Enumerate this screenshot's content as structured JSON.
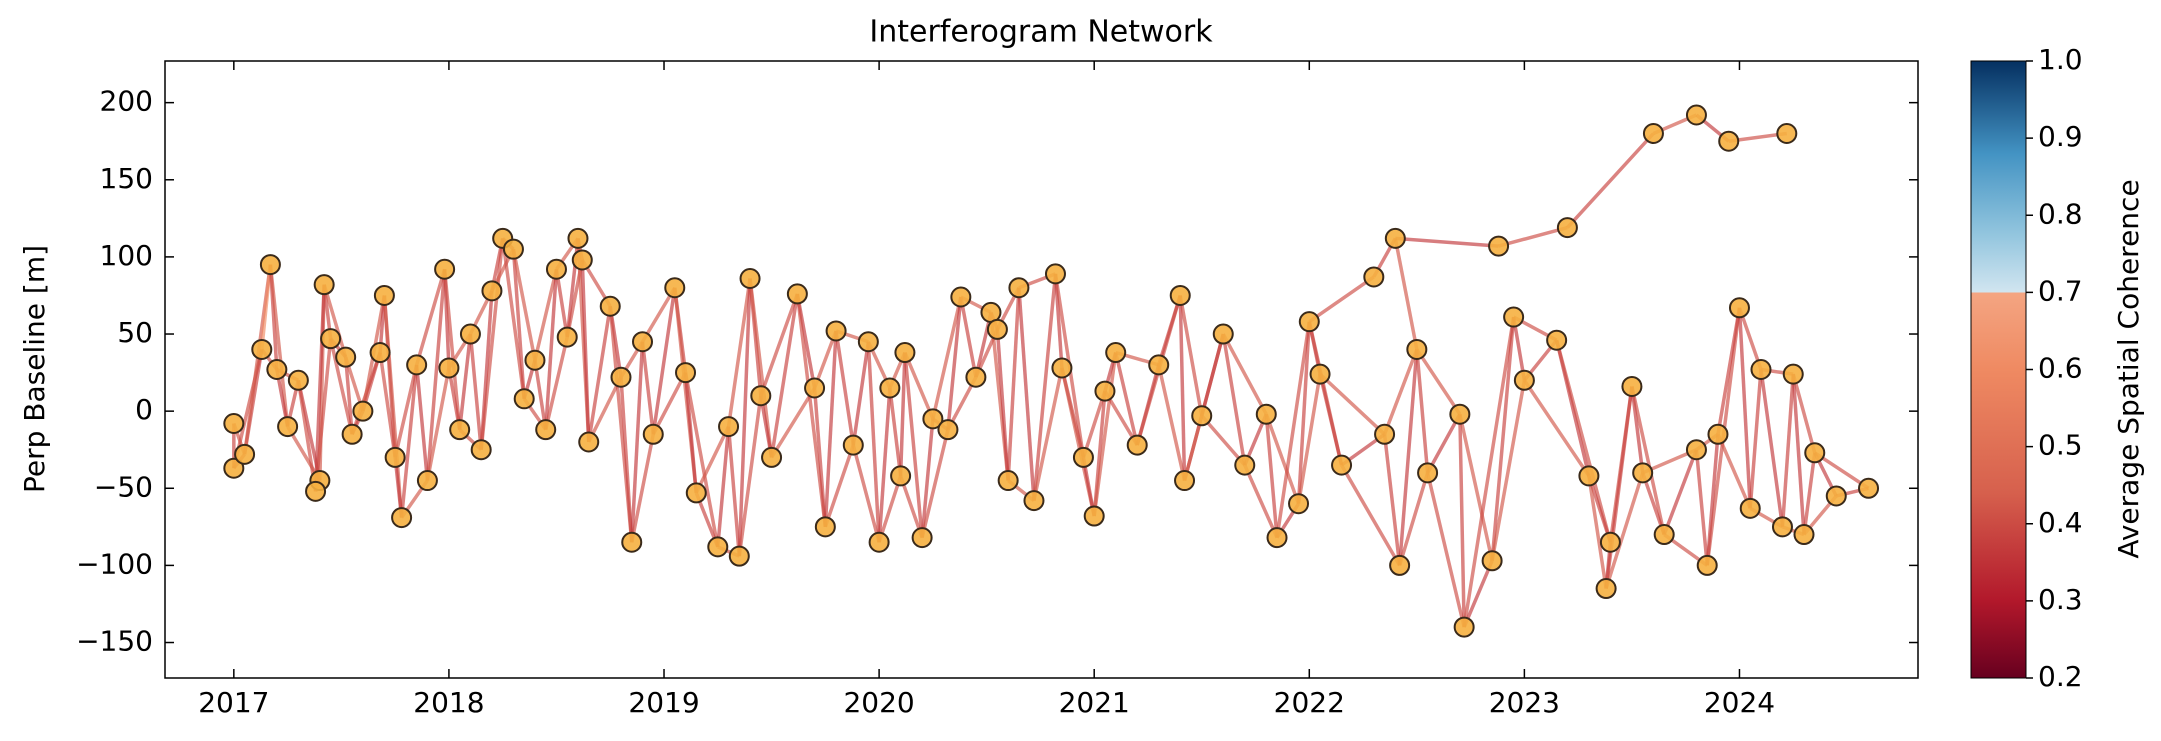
{
  "chart_data": {
    "type": "network",
    "title": "Interferogram Network",
    "y_label": "Perp Baseline [m]",
    "colorbar_label": "Average Spatial Coherence",
    "node_color": "#f6b040",
    "node_edge_color": "#3a2a1a",
    "xlim": [
      2016.68,
      2024.83
    ],
    "xticks": [
      2017,
      2018,
      2019,
      2020,
      2021,
      2022,
      2023,
      2024
    ],
    "ylim": [
      -173,
      227
    ],
    "yticks": [
      {
        "value": -150,
        "label": "−150"
      },
      {
        "value": -100,
        "label": "−100"
      },
      {
        "value": -50,
        "label": "−50"
      },
      0,
      50,
      100,
      150,
      200
    ],
    "clim": [
      0.2,
      1.0
    ],
    "cticks": [
      0.2,
      0.3,
      0.4,
      0.5,
      0.6,
      0.7,
      0.8,
      0.9,
      {
        "value": 1.0,
        "label": "1.0"
      }
    ],
    "x": [
      2017.0,
      2017.0,
      2017.05,
      2017.13,
      2017.17,
      2017.2,
      2017.25,
      2017.3,
      2017.4,
      2017.38,
      2017.42,
      2017.45,
      2017.52,
      2017.55,
      2017.6,
      2017.68,
      2017.7,
      2017.75,
      2017.78,
      2017.85,
      2017.9,
      2017.98,
      2018.0,
      2018.05,
      2018.1,
      2018.15,
      2018.2,
      2018.25,
      2018.3,
      2018.35,
      2018.4,
      2018.45,
      2018.5,
      2018.55,
      2018.6,
      2018.62,
      2018.65,
      2018.75,
      2018.8,
      2018.85,
      2018.9,
      2018.95,
      2019.05,
      2019.1,
      2019.15,
      2019.25,
      2019.3,
      2019.35,
      2019.4,
      2019.45,
      2019.5,
      2019.62,
      2019.7,
      2019.75,
      2019.8,
      2019.88,
      2019.95,
      2020.0,
      2020.05,
      2020.1,
      2020.12,
      2020.2,
      2020.25,
      2020.32,
      2020.38,
      2020.45,
      2020.52,
      2020.55,
      2020.6,
      2020.65,
      2020.72,
      2020.82,
      2020.85,
      2020.95,
      2021.0,
      2021.05,
      2021.1,
      2021.2,
      2021.3,
      2021.4,
      2021.42,
      2021.5,
      2021.6,
      2021.7,
      2021.8,
      2021.85,
      2021.95,
      2022.0,
      2022.05,
      2022.15,
      2022.3,
      2022.35,
      2022.4,
      2022.42,
      2022.5,
      2022.55,
      2022.7,
      2022.72,
      2022.85,
      2022.88,
      2022.95,
      2023.0,
      2023.15,
      2023.2,
      2023.3,
      2023.38,
      2023.5,
      2023.55,
      2023.6,
      2023.65,
      2023.8,
      2023.8,
      2023.85,
      2023.9,
      2023.95,
      2024.0,
      2024.05,
      2024.1,
      2024.2,
      2024.22,
      2024.25,
      2024.3,
      2024.35,
      2024.45,
      2024.6,
      2023.4
    ],
    "y": [
      -8,
      -37,
      -28,
      40,
      95,
      27,
      -10,
      20,
      -45,
      -52,
      82,
      47,
      35,
      -15,
      0,
      38,
      75,
      -30,
      -69,
      30,
      -45,
      92,
      28,
      -12,
      50,
      -25,
      78,
      112,
      105,
      8,
      33,
      -12,
      92,
      48,
      112,
      98,
      -20,
      68,
      22,
      -85,
      45,
      -15,
      80,
      25,
      -53,
      -88,
      -10,
      -94,
      86,
      10,
      -30,
      76,
      15,
      -75,
      52,
      -22,
      45,
      -85,
      15,
      -42,
      38,
      -82,
      -5,
      -12,
      74,
      22,
      64,
      53,
      -45,
      80,
      -58,
      89,
      28,
      -30,
      -68,
      13,
      38,
      -22,
      30,
      75,
      -45,
      -3,
      50,
      -35,
      -2,
      -82,
      -60,
      58,
      24,
      -35,
      87,
      -15,
      112,
      -100,
      40,
      -40,
      -2,
      -140,
      -97,
      107,
      61,
      20,
      46,
      119,
      -42,
      -115,
      16,
      -40,
      180,
      -80,
      -25,
      192,
      -100,
      -15,
      175,
      67,
      -63,
      27,
      -75,
      180,
      24,
      -80,
      -27,
      -55,
      -50,
      -85
    ],
    "edges": [
      [
        0,
        1,
        0.38
      ],
      [
        0,
        2,
        0.42
      ],
      [
        1,
        2,
        0.36
      ],
      [
        1,
        3,
        0.4
      ],
      [
        2,
        3,
        0.38
      ],
      [
        2,
        4,
        0.42
      ],
      [
        3,
        4,
        0.6
      ],
      [
        3,
        5,
        0.4
      ],
      [
        4,
        5,
        0.38
      ],
      [
        4,
        6,
        0.42
      ],
      [
        5,
        6,
        0.36
      ],
      [
        5,
        7,
        0.4
      ],
      [
        6,
        7,
        0.38
      ],
      [
        6,
        8,
        0.42
      ],
      [
        7,
        8,
        0.36
      ],
      [
        7,
        9,
        0.4
      ],
      [
        8,
        9,
        0.38
      ],
      [
        8,
        10,
        0.42
      ],
      [
        9,
        10,
        0.36
      ],
      [
        9,
        11,
        0.4
      ],
      [
        10,
        11,
        0.38
      ],
      [
        10,
        12,
        0.42
      ],
      [
        11,
        12,
        0.36
      ],
      [
        11,
        13,
        0.4
      ],
      [
        12,
        13,
        0.38
      ],
      [
        12,
        14,
        0.42
      ],
      [
        13,
        14,
        0.36
      ],
      [
        13,
        15,
        0.4
      ],
      [
        14,
        15,
        0.38
      ],
      [
        14,
        16,
        0.42
      ],
      [
        15,
        16,
        0.36
      ],
      [
        15,
        17,
        0.4
      ],
      [
        16,
        17,
        0.38
      ],
      [
        16,
        18,
        0.42
      ],
      [
        17,
        18,
        0.36
      ],
      [
        17,
        19,
        0.4
      ],
      [
        18,
        19,
        0.38
      ],
      [
        18,
        20,
        0.42
      ],
      [
        19,
        20,
        0.36
      ],
      [
        19,
        21,
        0.4
      ],
      [
        20,
        21,
        0.38
      ],
      [
        20,
        22,
        0.42
      ],
      [
        21,
        22,
        0.36
      ],
      [
        21,
        23,
        0.4
      ],
      [
        22,
        23,
        0.38
      ],
      [
        22,
        24,
        0.42
      ],
      [
        23,
        24,
        0.36
      ],
      [
        23,
        25,
        0.4
      ],
      [
        24,
        25,
        0.38
      ],
      [
        24,
        26,
        0.42
      ],
      [
        25,
        26,
        0.36
      ],
      [
        25,
        27,
        0.4
      ],
      [
        26,
        27,
        0.38
      ],
      [
        26,
        28,
        0.42
      ],
      [
        27,
        28,
        0.36
      ],
      [
        27,
        29,
        0.4
      ],
      [
        28,
        29,
        0.38
      ],
      [
        28,
        30,
        0.42
      ],
      [
        29,
        30,
        0.36
      ],
      [
        29,
        31,
        0.4
      ],
      [
        30,
        31,
        0.38
      ],
      [
        30,
        32,
        0.42
      ],
      [
        31,
        32,
        0.36
      ],
      [
        31,
        33,
        0.4
      ],
      [
        32,
        33,
        0.38
      ],
      [
        32,
        34,
        0.42
      ],
      [
        33,
        34,
        0.36
      ],
      [
        33,
        35,
        0.4
      ],
      [
        34,
        35,
        0.38
      ],
      [
        34,
        36,
        0.42
      ],
      [
        35,
        36,
        0.36
      ],
      [
        35,
        37,
        0.4
      ],
      [
        36,
        37,
        0.38
      ],
      [
        36,
        38,
        0.42
      ],
      [
        37,
        38,
        0.36
      ],
      [
        37,
        39,
        0.4
      ],
      [
        38,
        39,
        0.38
      ],
      [
        38,
        40,
        0.42
      ],
      [
        39,
        40,
        0.36
      ],
      [
        39,
        41,
        0.4
      ],
      [
        40,
        41,
        0.38
      ],
      [
        40,
        42,
        0.42
      ],
      [
        41,
        42,
        0.36
      ],
      [
        41,
        43,
        0.4
      ],
      [
        42,
        43,
        0.38
      ],
      [
        42,
        44,
        0.42
      ],
      [
        43,
        44,
        0.36
      ],
      [
        43,
        45,
        0.4
      ],
      [
        44,
        45,
        0.38
      ],
      [
        44,
        46,
        0.42
      ],
      [
        45,
        46,
        0.36
      ],
      [
        45,
        47,
        0.4
      ],
      [
        46,
        47,
        0.38
      ],
      [
        46,
        48,
        0.42
      ],
      [
        47,
        48,
        0.36
      ],
      [
        47,
        49,
        0.4
      ],
      [
        48,
        49,
        0.38
      ],
      [
        48,
        50,
        0.42
      ],
      [
        49,
        50,
        0.36
      ],
      [
        49,
        51,
        0.4
      ],
      [
        50,
        51,
        0.38
      ],
      [
        50,
        52,
        0.42
      ],
      [
        51,
        52,
        0.36
      ],
      [
        51,
        53,
        0.4
      ],
      [
        52,
        53,
        0.38
      ],
      [
        52,
        54,
        0.42
      ],
      [
        53,
        54,
        0.36
      ],
      [
        53,
        55,
        0.4
      ],
      [
        54,
        55,
        0.38
      ],
      [
        54,
        56,
        0.42
      ],
      [
        55,
        56,
        0.36
      ],
      [
        55,
        57,
        0.4
      ],
      [
        56,
        57,
        0.38
      ],
      [
        56,
        58,
        0.42
      ],
      [
        57,
        58,
        0.36
      ],
      [
        57,
        59,
        0.4
      ],
      [
        58,
        59,
        0.38
      ],
      [
        58,
        60,
        0.42
      ],
      [
        59,
        60,
        0.36
      ],
      [
        59,
        61,
        0.4
      ],
      [
        60,
        61,
        0.38
      ],
      [
        60,
        62,
        0.42
      ],
      [
        61,
        62,
        0.36
      ],
      [
        61,
        63,
        0.4
      ],
      [
        62,
        63,
        0.38
      ],
      [
        62,
        64,
        0.42
      ],
      [
        63,
        64,
        0.36
      ],
      [
        63,
        65,
        0.4
      ],
      [
        64,
        65,
        0.38
      ],
      [
        64,
        66,
        0.42
      ],
      [
        65,
        66,
        0.36
      ],
      [
        65,
        67,
        0.4
      ],
      [
        66,
        67,
        0.38
      ],
      [
        66,
        68,
        0.42
      ],
      [
        67,
        68,
        0.36
      ],
      [
        67,
        69,
        0.4
      ],
      [
        68,
        69,
        0.38
      ],
      [
        68,
        70,
        0.42
      ],
      [
        69,
        70,
        0.36
      ],
      [
        69,
        71,
        0.4
      ],
      [
        70,
        71,
        0.38
      ],
      [
        70,
        72,
        0.42
      ],
      [
        71,
        72,
        0.36
      ],
      [
        71,
        73,
        0.4
      ],
      [
        72,
        73,
        0.38
      ],
      [
        72,
        74,
        0.42
      ],
      [
        73,
        74,
        0.36
      ],
      [
        73,
        75,
        0.4
      ],
      [
        74,
        75,
        0.38
      ],
      [
        74,
        76,
        0.42
      ],
      [
        75,
        76,
        0.36
      ],
      [
        75,
        77,
        0.4
      ],
      [
        76,
        77,
        0.38
      ],
      [
        76,
        78,
        0.42
      ],
      [
        77,
        78,
        0.36
      ],
      [
        77,
        79,
        0.4
      ],
      [
        78,
        79,
        0.38
      ],
      [
        78,
        80,
        0.42
      ],
      [
        79,
        80,
        0.36
      ],
      [
        79,
        81,
        0.4
      ],
      [
        80,
        81,
        0.38
      ],
      [
        80,
        82,
        0.42
      ],
      [
        81,
        82,
        0.36
      ],
      [
        81,
        83,
        0.4
      ],
      [
        82,
        83,
        0.38
      ],
      [
        82,
        84,
        0.42
      ],
      [
        83,
        84,
        0.36
      ],
      [
        83,
        85,
        0.4
      ],
      [
        84,
        85,
        0.38
      ],
      [
        84,
        86,
        0.42
      ],
      [
        85,
        86,
        0.36
      ],
      [
        85,
        87,
        0.4
      ],
      [
        86,
        87,
        0.38
      ],
      [
        86,
        88,
        0.42
      ],
      [
        87,
        88,
        0.36
      ],
      [
        87,
        89,
        0.4
      ],
      [
        88,
        89,
        0.38
      ],
      [
        88,
        91,
        0.42
      ],
      [
        89,
        91,
        0.36
      ],
      [
        89,
        93,
        0.4
      ],
      [
        91,
        93,
        0.38
      ],
      [
        91,
        94,
        0.42
      ],
      [
        93,
        94,
        0.36
      ],
      [
        93,
        95,
        0.4
      ],
      [
        94,
        95,
        0.38
      ],
      [
        94,
        96,
        0.42
      ],
      [
        95,
        96,
        0.36
      ],
      [
        95,
        97,
        0.4
      ],
      [
        96,
        97,
        0.38
      ],
      [
        96,
        98,
        0.42
      ],
      [
        97,
        98,
        0.36
      ],
      [
        97,
        100,
        0.4
      ],
      [
        98,
        100,
        0.38
      ],
      [
        98,
        101,
        0.42
      ],
      [
        100,
        101,
        0.36
      ],
      [
        100,
        102,
        0.4
      ],
      [
        101,
        102,
        0.38
      ],
      [
        101,
        104,
        0.42
      ],
      [
        102,
        104,
        0.36
      ],
      [
        102,
        125,
        0.4
      ],
      [
        104,
        125,
        0.38
      ],
      [
        104,
        105,
        0.42
      ],
      [
        125,
        105,
        0.36
      ],
      [
        125,
        106,
        0.4
      ],
      [
        105,
        106,
        0.38
      ],
      [
        105,
        107,
        0.42
      ],
      [
        106,
        107,
        0.36
      ],
      [
        106,
        109,
        0.4
      ],
      [
        107,
        109,
        0.38
      ],
      [
        107,
        110,
        0.42
      ],
      [
        109,
        110,
        0.36
      ],
      [
        109,
        112,
        0.4
      ],
      [
        110,
        112,
        0.38
      ],
      [
        110,
        113,
        0.42
      ],
      [
        112,
        113,
        0.36
      ],
      [
        112,
        115,
        0.4
      ],
      [
        113,
        115,
        0.38
      ],
      [
        113,
        116,
        0.42
      ],
      [
        115,
        116,
        0.36
      ],
      [
        115,
        117,
        0.4
      ],
      [
        116,
        117,
        0.38
      ],
      [
        116,
        118,
        0.42
      ],
      [
        117,
        118,
        0.36
      ],
      [
        117,
        120,
        0.4
      ],
      [
        118,
        120,
        0.38
      ],
      [
        118,
        121,
        0.42
      ],
      [
        120,
        121,
        0.36
      ],
      [
        120,
        122,
        0.4
      ],
      [
        121,
        122,
        0.38
      ],
      [
        121,
        123,
        0.42
      ],
      [
        122,
        123,
        0.36
      ],
      [
        122,
        124,
        0.4
      ],
      [
        123,
        124,
        0.38
      ],
      [
        87,
        90,
        0.4
      ],
      [
        90,
        92,
        0.38
      ],
      [
        92,
        94,
        0.42
      ],
      [
        92,
        99,
        0.36
      ],
      [
        99,
        103,
        0.4
      ],
      [
        103,
        108,
        0.38
      ],
      [
        108,
        111,
        0.42
      ],
      [
        111,
        114,
        0.36
      ],
      [
        114,
        119,
        0.4
      ]
    ]
  }
}
